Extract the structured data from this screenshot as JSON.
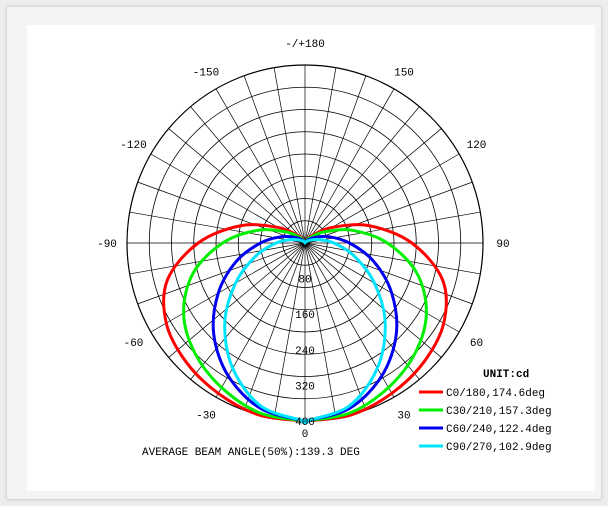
{
  "chart_data": {
    "type": "polar-line",
    "unit_label": "UNIT:cd",
    "footer": "AVERAGE BEAM ANGLE(50%):139.3 DEG",
    "radial_ticks": [
      "80",
      "160",
      "240",
      "320",
      "400"
    ],
    "radial_values": [
      80,
      160,
      240,
      320,
      400
    ],
    "r_max": 400,
    "angle_labels": [
      {
        "angle": 180,
        "text": "-/+180"
      },
      {
        "angle": 150,
        "text": "150"
      },
      {
        "angle": -150,
        "text": "-150"
      },
      {
        "angle": 120,
        "text": "120"
      },
      {
        "angle": -120,
        "text": "-120"
      },
      {
        "angle": 90,
        "text": "90"
      },
      {
        "angle": -90,
        "text": "-90"
      },
      {
        "angle": 60,
        "text": "60"
      },
      {
        "angle": -60,
        "text": "-60"
      },
      {
        "angle": 30,
        "text": "30"
      },
      {
        "angle": -30,
        "text": "-30"
      },
      {
        "angle": 0,
        "text": "0"
      }
    ],
    "series": [
      {
        "name": "C0/180,174.6deg",
        "color": "#ff0000",
        "angles": [
          0,
          15,
          30,
          45,
          60,
          75,
          90,
          105,
          120,
          135,
          150,
          165,
          180
        ],
        "values": [
          400,
          400,
          390,
          378,
          360,
          320,
          240,
          150,
          70,
          25,
          8,
          2,
          0
        ]
      },
      {
        "name": "C30/210,157.3deg",
        "color": "#00ee00",
        "angles": [
          0,
          15,
          30,
          45,
          60,
          75,
          90,
          105,
          120,
          135,
          150,
          165,
          180
        ],
        "values": [
          400,
          395,
          375,
          350,
          315,
          260,
          185,
          110,
          50,
          18,
          6,
          2,
          0
        ]
      },
      {
        "name": "C60/240,122.4deg",
        "color": "#0000ee",
        "angles": [
          0,
          15,
          30,
          45,
          60,
          75,
          90,
          105,
          120,
          135,
          150,
          165,
          180
        ],
        "values": [
          400,
          385,
          345,
          290,
          225,
          160,
          100,
          55,
          25,
          10,
          4,
          1,
          0
        ]
      },
      {
        "name": "C90/270,102.9deg",
        "color": "#00e5ff",
        "angles": [
          0,
          15,
          30,
          45,
          60,
          75,
          90,
          105,
          120,
          135,
          150,
          165,
          180
        ],
        "values": [
          400,
          380,
          325,
          255,
          180,
          115,
          65,
          30,
          12,
          5,
          2,
          1,
          0
        ]
      }
    ]
  }
}
